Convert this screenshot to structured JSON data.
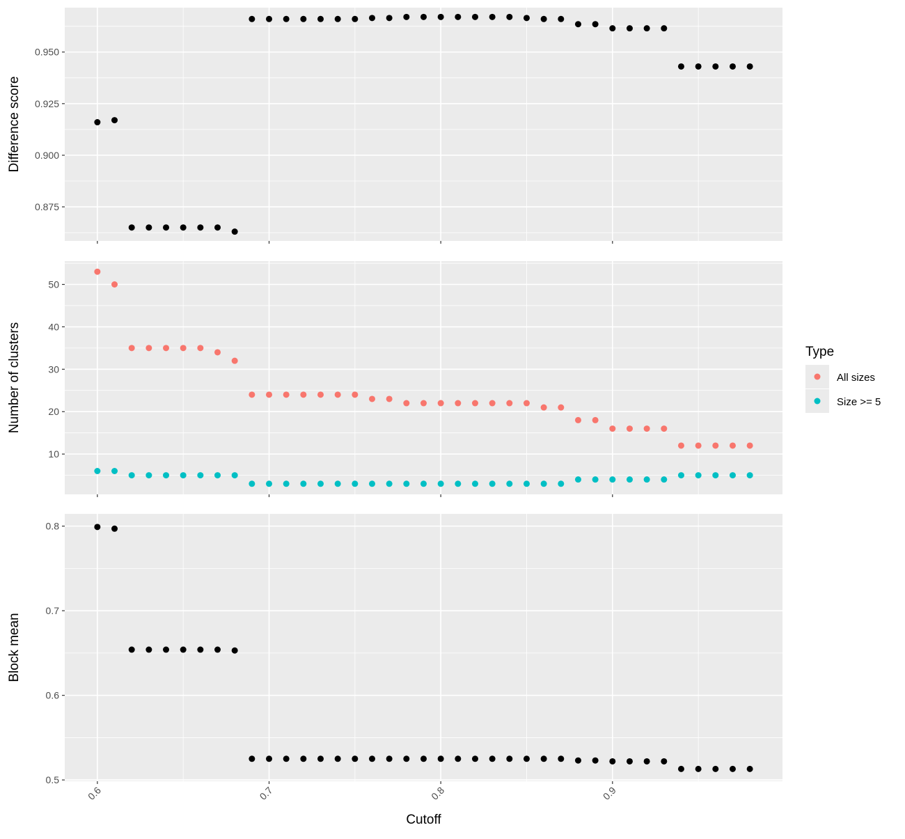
{
  "x_label": "Cutoff",
  "chart_data": {
    "type": "scatter",
    "xlabel": "Cutoff",
    "x": [
      0.6,
      0.61,
      0.62,
      0.63,
      0.64,
      0.65,
      0.66,
      0.67,
      0.68,
      0.69,
      0.7,
      0.71,
      0.72,
      0.73,
      0.74,
      0.75,
      0.76,
      0.77,
      0.78,
      0.79,
      0.8,
      0.81,
      0.82,
      0.83,
      0.84,
      0.85,
      0.86,
      0.87,
      0.88,
      0.89,
      0.9,
      0.91,
      0.92,
      0.93,
      0.94,
      0.95,
      0.96,
      0.97,
      0.98
    ],
    "xlim": [
      0.581,
      0.999
    ],
    "xticks": [
      0.6,
      0.7,
      0.8,
      0.9
    ],
    "xtick_labels": [
      "0.6",
      "0.7",
      "0.8",
      "0.9"
    ],
    "grid": true,
    "legend": {
      "title": "Type",
      "position": "right",
      "entries": [
        {
          "label": "All sizes",
          "color": "#F8766D"
        },
        {
          "label": "Size >= 5",
          "color": "#00BFC4"
        }
      ]
    },
    "panels": [
      {
        "id": "difference",
        "ylabel": "Difference score",
        "ylim": [
          0.8585,
          0.9715
        ],
        "yticks": [
          0.875,
          0.9,
          0.925,
          0.95
        ],
        "ytick_labels": [
          "0.875",
          "0.900",
          "0.925",
          "0.950"
        ],
        "series": [
          {
            "color": "#000000",
            "values": [
              0.916,
              0.917,
              0.865,
              0.865,
              0.865,
              0.865,
              0.865,
              0.865,
              0.863,
              0.966,
              0.966,
              0.966,
              0.966,
              0.966,
              0.966,
              0.966,
              0.9665,
              0.9665,
              0.967,
              0.967,
              0.967,
              0.967,
              0.967,
              0.967,
              0.967,
              0.9665,
              0.966,
              0.966,
              0.9635,
              0.9635,
              0.9615,
              0.9615,
              0.9615,
              0.9615,
              0.943,
              0.943,
              0.943,
              0.943,
              0.943
            ]
          }
        ]
      },
      {
        "id": "clusters",
        "ylabel": "Number of clusters",
        "ylim": [
          0.5,
          55.5
        ],
        "yticks": [
          10,
          20,
          30,
          40,
          50
        ],
        "ytick_labels": [
          "10",
          "20",
          "30",
          "40",
          "50"
        ],
        "series": [
          {
            "name": "All sizes",
            "color": "#F8766D",
            "values": [
              53,
              50,
              35,
              35,
              35,
              35,
              35,
              34,
              32,
              24,
              24,
              24,
              24,
              24,
              24,
              24,
              23,
              23,
              22,
              22,
              22,
              22,
              22,
              22,
              22,
              22,
              21,
              21,
              18,
              18,
              16,
              16,
              16,
              16,
              12,
              12,
              12,
              12,
              12
            ]
          },
          {
            "name": "Size >= 5",
            "color": "#00BFC4",
            "values": [
              6,
              6,
              5,
              5,
              5,
              5,
              5,
              5,
              5,
              3,
              3,
              3,
              3,
              3,
              3,
              3,
              3,
              3,
              3,
              3,
              3,
              3,
              3,
              3,
              3,
              3,
              3,
              3,
              4,
              4,
              4,
              4,
              4,
              4,
              5,
              5,
              5,
              5,
              5
            ]
          }
        ]
      },
      {
        "id": "block",
        "ylabel": "Block mean",
        "ylim": [
          0.4985,
          0.8145
        ],
        "yticks": [
          0.5,
          0.6,
          0.7,
          0.8
        ],
        "ytick_labels": [
          "0.5",
          "0.6",
          "0.7",
          "0.8"
        ],
        "series": [
          {
            "color": "#000000",
            "values": [
              0.799,
              0.797,
              0.654,
              0.654,
              0.654,
              0.654,
              0.654,
              0.654,
              0.653,
              0.525,
              0.525,
              0.525,
              0.525,
              0.525,
              0.525,
              0.525,
              0.525,
              0.525,
              0.525,
              0.525,
              0.525,
              0.525,
              0.525,
              0.525,
              0.525,
              0.525,
              0.525,
              0.525,
              0.523,
              0.523,
              0.522,
              0.522,
              0.522,
              0.522,
              0.513,
              0.513,
              0.513,
              0.513,
              0.513
            ]
          }
        ]
      }
    ]
  }
}
